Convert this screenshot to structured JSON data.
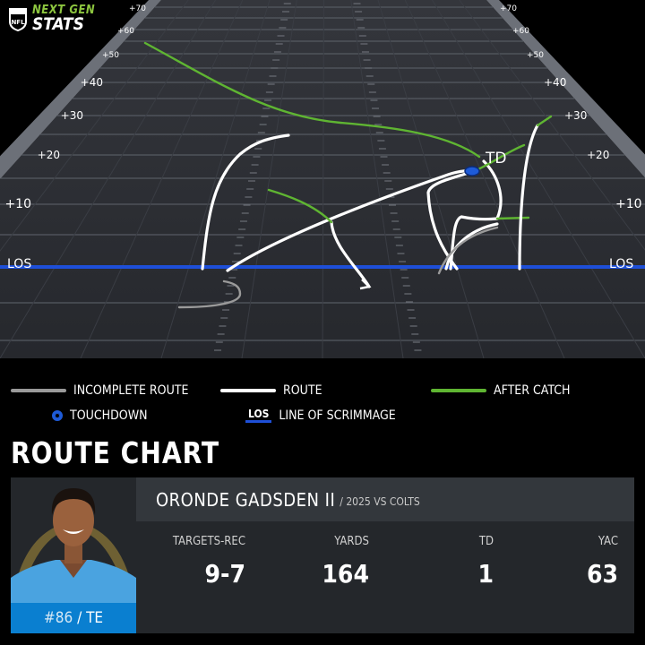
{
  "brand": {
    "line1": "NEXT GEN",
    "line2": "STATS",
    "shield": "NFL"
  },
  "chart_data": {
    "type": "route",
    "title": "ROUTE CHART",
    "yard_ticks": [
      "+70",
      "+60",
      "+50",
      "+40",
      "+30",
      "+20",
      "+10",
      "LOS"
    ],
    "touchdown_label": "TD",
    "legend": [
      {
        "key": "incomplete",
        "label": "INCOMPLETE ROUTE",
        "color": "#9a9a9a"
      },
      {
        "key": "route",
        "label": "ROUTE",
        "color": "#ffffff"
      },
      {
        "key": "after_catch",
        "label": "AFTER CATCH",
        "color": "#5fb532"
      },
      {
        "key": "touchdown",
        "label": "TOUCHDOWN",
        "color": "#1e5bd8"
      },
      {
        "key": "los",
        "label": "LINE OF SCRIMMAGE",
        "badge": "LOS",
        "color": "#1e4fd8"
      }
    ]
  },
  "player": {
    "name": "ORONDE GADSDEN II",
    "context": "/ 2025 VS COLTS",
    "number": "#86",
    "position": "/ TE",
    "stats": [
      {
        "label": "TARGETS-REC",
        "value": "9-7"
      },
      {
        "label": "YARDS",
        "value": "164"
      },
      {
        "label": "TD",
        "value": "1"
      },
      {
        "label": "YAC",
        "value": "63"
      }
    ]
  },
  "colors": {
    "background": "#000000",
    "field": "#2b2d33",
    "los": "#1e4fd8",
    "after_catch": "#5fb532",
    "team_blue": "#0a7fd0"
  }
}
